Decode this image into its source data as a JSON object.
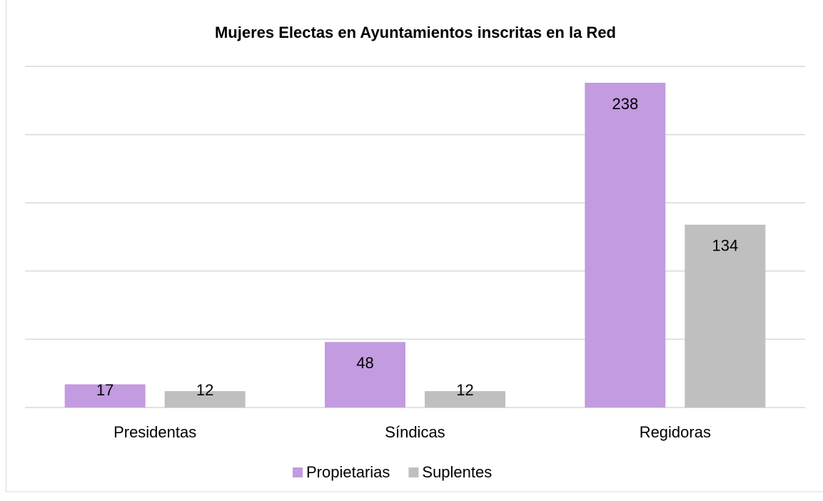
{
  "chart_data": {
    "type": "bar",
    "title": "Mujeres Electas en Ayuntamientos inscritas en la Red",
    "categories": [
      "Presidentas",
      "Síndicas",
      "Regidoras"
    ],
    "series": [
      {
        "name": "Propietarias",
        "color": "#c39be0",
        "values": [
          17,
          48,
          238
        ]
      },
      {
        "name": "Suplentes",
        "color": "#bfbfbf",
        "values": [
          12,
          12,
          134
        ]
      }
    ],
    "ylim": [
      0,
      250
    ],
    "yticks": [
      0,
      50,
      100,
      150,
      200,
      250
    ],
    "grid": true,
    "legend": "bottom"
  }
}
